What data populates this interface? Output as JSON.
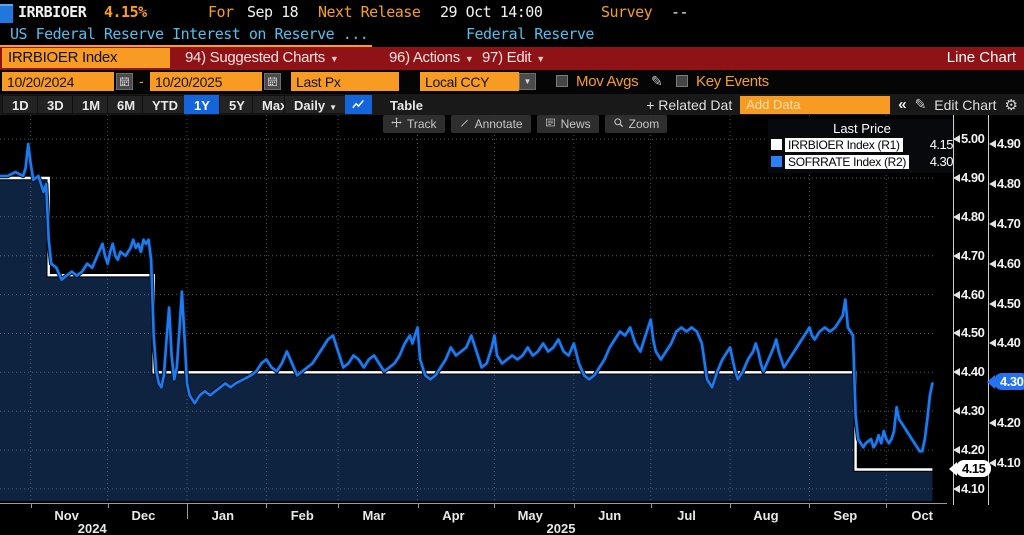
{
  "header": {
    "security": "IRRBIOER",
    "last_value": "4.15%",
    "for_label": "For",
    "for_date": "Sep 18",
    "next_release_label": "Next Release",
    "next_release_value": "29 Oct 14:00",
    "survey_label": "Survey",
    "survey_value": "--",
    "description": "US Federal Reserve Interest on Reserve ...",
    "source": "Federal Reserve"
  },
  "menu_bar": {
    "ticker_box": "IRRBIOER Index",
    "items": [
      {
        "label": "94) Suggested Charts"
      },
      {
        "label": "96) Actions"
      },
      {
        "label": "97) Edit"
      }
    ],
    "view_label": "Line Chart"
  },
  "settings_bar": {
    "date_from": "10/20/2024",
    "date_separator": "-",
    "date_to": "10/20/2025",
    "price_field": "Last Px",
    "currency": "Local CCY",
    "mov_avgs_label": "Mov Avgs",
    "key_events_label": "Key Events"
  },
  "toolbar": {
    "ranges": [
      "1D",
      "3D",
      "1M",
      "6M",
      "YTD",
      "1Y",
      "5Y",
      "Max"
    ],
    "selected_range": "1Y",
    "period": "Daily",
    "table_label": "Table",
    "related_data_label": "+ Related Dat",
    "add_data_placeholder": "Add Data",
    "collapse_label": "«",
    "edit_chart_label": "Edit Chart"
  },
  "overlay_tools": [
    {
      "name": "track",
      "label": "Track"
    },
    {
      "name": "annotate",
      "label": "Annotate"
    },
    {
      "name": "news",
      "label": "News"
    },
    {
      "name": "zoom",
      "label": "Zoom"
    }
  ],
  "legend": {
    "title": "Last Price",
    "entries": [
      {
        "label": "IRRBIOER Index  (R1)",
        "value": "4.15",
        "color": "#ffffff"
      },
      {
        "label": "SOFRRATE Index  (R2)",
        "value": "4.30",
        "color": "#2e7ff5"
      }
    ]
  },
  "colors": {
    "accent_orange": "#f79b22",
    "menu_red": "#8f1216",
    "selected_blue": "#1464dc",
    "line_white": "#ffffff",
    "line_blue": "#1d7bf0",
    "area_fill": "#0d2340",
    "background": "#000000"
  },
  "chart_data": {
    "type": "line",
    "title": "IRRBIOER Index (R1) vs SOFRRATE Index (R2) - Last Price, Daily, 10/20/2024 - 10/20/2025",
    "x_axis": {
      "start": "10/20/2024",
      "end": "10/20/2025",
      "days_total": 365,
      "month_start_days": [
        12,
        42,
        73,
        104,
        132,
        163,
        193,
        224,
        254,
        285,
        316,
        346
      ],
      "month_labels": [
        {
          "label": "Nov",
          "day": 26
        },
        {
          "label": "Dec",
          "day": 56
        },
        {
          "label": "Jan",
          "day": 87
        },
        {
          "label": "Feb",
          "day": 118
        },
        {
          "label": "Mar",
          "day": 146
        },
        {
          "label": "Apr",
          "day": 177
        },
        {
          "label": "May",
          "day": 207
        },
        {
          "label": "Jun",
          "day": 238
        },
        {
          "label": "Jul",
          "day": 268
        },
        {
          "label": "Aug",
          "day": 299
        },
        {
          "label": "Sep",
          "day": 330
        },
        {
          "label": "Oct",
          "day": 360
        }
      ],
      "year_labels": [
        {
          "label": "2024",
          "day": 36
        },
        {
          "label": "2025",
          "day": 219
        }
      ]
    },
    "axes": {
      "R1": {
        "ticks": [
          5.0,
          4.9,
          4.8,
          4.7,
          4.6,
          4.5,
          4.4,
          4.3,
          4.2,
          4.1
        ],
        "top_value": 5.062,
        "bottom_value": 4.069
      },
      "R2": {
        "ticks": [
          4.9,
          4.8,
          4.7,
          4.6,
          4.5,
          4.4,
          4.3,
          4.2,
          4.1
        ],
        "top_value": 4.973,
        "bottom_value": 4.005
      }
    },
    "badges": [
      {
        "value": "4.15",
        "axis": "R1",
        "v": 4.15,
        "style": "white"
      },
      {
        "value": "4.30",
        "axis": "R2",
        "v": 4.3,
        "style": "blue"
      }
    ],
    "series": [
      {
        "name": "IRRBIOER Index",
        "axis": "R1",
        "color": "#ffffff",
        "style": "step",
        "area_fill": "#0d2340",
        "last": 4.15,
        "points": [
          [
            0,
            4.9
          ],
          [
            19,
            4.9
          ],
          [
            19,
            4.65
          ],
          [
            60,
            4.65
          ],
          [
            60,
            4.4
          ],
          [
            334,
            4.4
          ],
          [
            334,
            4.15
          ],
          [
            364,
            4.15
          ]
        ]
      },
      {
        "name": "SOFRRATE Index",
        "axis": "R2",
        "color": "#1d7bf0",
        "style": "line",
        "last": 4.3,
        "points": [
          [
            0,
            4.82
          ],
          [
            3,
            4.82
          ],
          [
            6,
            4.83
          ],
          [
            9,
            4.82
          ],
          [
            10,
            4.84
          ],
          [
            11,
            4.9
          ],
          [
            12,
            4.85
          ],
          [
            13,
            4.81
          ],
          [
            15,
            4.82
          ],
          [
            17,
            4.78
          ],
          [
            18,
            4.8
          ],
          [
            19,
            4.66
          ],
          [
            20,
            4.6
          ],
          [
            22,
            4.59
          ],
          [
            24,
            4.56
          ],
          [
            26,
            4.57
          ],
          [
            28,
            4.58
          ],
          [
            30,
            4.57
          ],
          [
            32,
            4.58
          ],
          [
            34,
            4.6
          ],
          [
            36,
            4.59
          ],
          [
            38,
            4.62
          ],
          [
            40,
            4.65
          ],
          [
            41,
            4.62
          ],
          [
            42,
            4.6
          ],
          [
            43,
            4.63
          ],
          [
            44,
            4.65
          ],
          [
            45,
            4.62
          ],
          [
            46,
            4.61
          ],
          [
            47,
            4.63
          ],
          [
            49,
            4.62
          ],
          [
            51,
            4.64
          ],
          [
            52,
            4.66
          ],
          [
            53,
            4.64
          ],
          [
            54,
            4.65
          ],
          [
            55,
            4.63
          ],
          [
            56,
            4.66
          ],
          [
            57,
            4.65
          ],
          [
            58,
            4.66
          ],
          [
            59,
            4.61
          ],
          [
            60,
            4.42
          ],
          [
            61,
            4.33
          ],
          [
            62,
            4.3
          ],
          [
            63,
            4.29
          ],
          [
            64,
            4.32
          ],
          [
            65,
            4.41
          ],
          [
            66,
            4.49
          ],
          [
            67,
            4.37
          ],
          [
            68,
            4.31
          ],
          [
            69,
            4.34
          ],
          [
            70,
            4.43
          ],
          [
            71,
            4.53
          ],
          [
            72,
            4.42
          ],
          [
            73,
            4.3
          ],
          [
            74,
            4.27
          ],
          [
            76,
            4.25
          ],
          [
            78,
            4.27
          ],
          [
            80,
            4.28
          ],
          [
            82,
            4.27
          ],
          [
            84,
            4.28
          ],
          [
            86,
            4.29
          ],
          [
            88,
            4.3
          ],
          [
            90,
            4.29
          ],
          [
            92,
            4.3
          ],
          [
            95,
            4.31
          ],
          [
            98,
            4.32
          ],
          [
            100,
            4.33
          ],
          [
            102,
            4.35
          ],
          [
            104,
            4.36
          ],
          [
            106,
            4.34
          ],
          [
            108,
            4.33
          ],
          [
            110,
            4.35
          ],
          [
            112,
            4.38
          ],
          [
            114,
            4.35
          ],
          [
            116,
            4.32
          ],
          [
            118,
            4.33
          ],
          [
            120,
            4.34
          ],
          [
            122,
            4.35
          ],
          [
            124,
            4.37
          ],
          [
            126,
            4.39
          ],
          [
            128,
            4.41
          ],
          [
            130,
            4.42
          ],
          [
            132,
            4.38
          ],
          [
            134,
            4.34
          ],
          [
            136,
            4.35
          ],
          [
            138,
            4.37
          ],
          [
            140,
            4.36
          ],
          [
            142,
            4.34
          ],
          [
            144,
            4.36
          ],
          [
            146,
            4.37
          ],
          [
            148,
            4.35
          ],
          [
            150,
            4.33
          ],
          [
            152,
            4.34
          ],
          [
            154,
            4.35
          ],
          [
            156,
            4.37
          ],
          [
            158,
            4.4
          ],
          [
            160,
            4.42
          ],
          [
            161,
            4.4
          ],
          [
            163,
            4.44
          ],
          [
            164,
            4.36
          ],
          [
            166,
            4.32
          ],
          [
            168,
            4.31
          ],
          [
            170,
            4.32
          ],
          [
            172,
            4.34
          ],
          [
            174,
            4.36
          ],
          [
            176,
            4.39
          ],
          [
            178,
            4.37
          ],
          [
            180,
            4.38
          ],
          [
            182,
            4.39
          ],
          [
            184,
            4.42
          ],
          [
            186,
            4.38
          ],
          [
            188,
            4.34
          ],
          [
            190,
            4.35
          ],
          [
            192,
            4.39
          ],
          [
            193,
            4.42
          ],
          [
            194,
            4.37
          ],
          [
            196,
            4.35
          ],
          [
            198,
            4.36
          ],
          [
            200,
            4.37
          ],
          [
            202,
            4.36
          ],
          [
            204,
            4.37
          ],
          [
            206,
            4.39
          ],
          [
            208,
            4.37
          ],
          [
            210,
            4.38
          ],
          [
            212,
            4.4
          ],
          [
            214,
            4.38
          ],
          [
            216,
            4.39
          ],
          [
            218,
            4.41
          ],
          [
            220,
            4.38
          ],
          [
            222,
            4.37
          ],
          [
            224,
            4.4
          ],
          [
            226,
            4.35
          ],
          [
            228,
            4.32
          ],
          [
            230,
            4.31
          ],
          [
            232,
            4.32
          ],
          [
            234,
            4.34
          ],
          [
            236,
            4.36
          ],
          [
            238,
            4.39
          ],
          [
            240,
            4.41
          ],
          [
            242,
            4.43
          ],
          [
            244,
            4.42
          ],
          [
            246,
            4.44
          ],
          [
            248,
            4.4
          ],
          [
            250,
            4.38
          ],
          [
            252,
            4.42
          ],
          [
            254,
            4.46
          ],
          [
            255,
            4.41
          ],
          [
            256,
            4.38
          ],
          [
            258,
            4.36
          ],
          [
            260,
            4.38
          ],
          [
            262,
            4.4
          ],
          [
            264,
            4.43
          ],
          [
            266,
            4.44
          ],
          [
            268,
            4.43
          ],
          [
            270,
            4.44
          ],
          [
            272,
            4.43
          ],
          [
            274,
            4.4
          ],
          [
            276,
            4.31
          ],
          [
            278,
            4.29
          ],
          [
            280,
            4.33
          ],
          [
            282,
            4.36
          ],
          [
            284,
            4.38
          ],
          [
            285,
            4.39
          ],
          [
            286,
            4.36
          ],
          [
            287,
            4.33
          ],
          [
            288,
            4.31
          ],
          [
            290,
            4.33
          ],
          [
            292,
            4.36
          ],
          [
            294,
            4.38
          ],
          [
            295,
            4.4
          ],
          [
            296,
            4.38
          ],
          [
            297,
            4.35
          ],
          [
            298,
            4.33
          ],
          [
            300,
            4.36
          ],
          [
            302,
            4.39
          ],
          [
            303,
            4.41
          ],
          [
            304,
            4.38
          ],
          [
            305,
            4.36
          ],
          [
            306,
            4.34
          ],
          [
            308,
            4.36
          ],
          [
            310,
            4.38
          ],
          [
            312,
            4.4
          ],
          [
            314,
            4.42
          ],
          [
            316,
            4.44
          ],
          [
            317,
            4.42
          ],
          [
            318,
            4.41
          ],
          [
            320,
            4.43
          ],
          [
            322,
            4.44
          ],
          [
            324,
            4.43
          ],
          [
            326,
            4.44
          ],
          [
            328,
            4.46
          ],
          [
            329,
            4.47
          ],
          [
            330,
            4.51
          ],
          [
            331,
            4.44
          ],
          [
            332,
            4.43
          ],
          [
            333,
            4.42
          ],
          [
            334,
            4.22
          ],
          [
            335,
            4.16
          ],
          [
            336,
            4.15
          ],
          [
            337,
            4.14
          ],
          [
            338,
            4.15
          ],
          [
            340,
            4.16
          ],
          [
            341,
            4.14
          ],
          [
            342,
            4.15
          ],
          [
            343,
            4.17
          ],
          [
            344,
            4.15
          ],
          [
            345,
            4.18
          ],
          [
            346,
            4.16
          ],
          [
            347,
            4.15
          ],
          [
            348,
            4.16
          ],
          [
            349,
            4.18
          ],
          [
            350,
            4.24
          ],
          [
            351,
            4.21
          ],
          [
            352,
            4.2
          ],
          [
            353,
            4.19
          ],
          [
            354,
            4.18
          ],
          [
            355,
            4.17
          ],
          [
            356,
            4.16
          ],
          [
            357,
            4.15
          ],
          [
            358,
            4.14
          ],
          [
            359,
            4.13
          ],
          [
            360,
            4.13
          ],
          [
            361,
            4.16
          ],
          [
            362,
            4.21
          ],
          [
            363,
            4.27
          ],
          [
            364,
            4.3
          ]
        ]
      }
    ]
  }
}
